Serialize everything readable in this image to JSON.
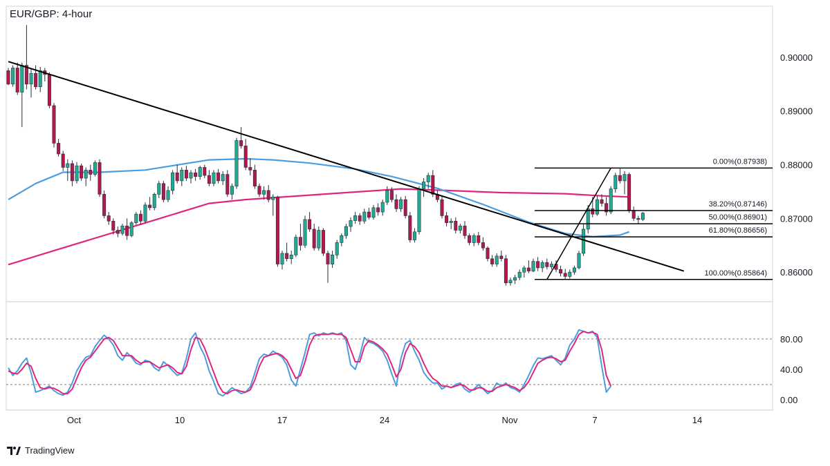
{
  "title": "EUR/GBP: 4-hour",
  "brand": "TradingView",
  "colors": {
    "up": "#22ab94",
    "down": "#b2184f",
    "ma_fast": "#4a9de0",
    "ma_slow": "#e0267a",
    "stoch_k": "#4a9de0",
    "stoch_d": "#e0267a",
    "trendline": "#000000",
    "fib": "#000000"
  },
  "chart_data": {
    "type": "candlestick",
    "price_axis": {
      "ticks": [
        0.9,
        0.89,
        0.88,
        0.87,
        0.86
      ],
      "labels": [
        "0.90000",
        "0.89000",
        "0.88000",
        "0.87000",
        "0.86000"
      ],
      "range": [
        0.8545,
        0.9095
      ]
    },
    "x_axis": {
      "labels": [
        "Oct",
        "10",
        "17",
        "24",
        "Nov",
        "7",
        "14"
      ]
    },
    "ohlc": [
      [
        0.8975,
        0.898,
        0.8948,
        0.895
      ],
      [
        0.895,
        0.8985,
        0.8945,
        0.898
      ],
      [
        0.898,
        0.899,
        0.893,
        0.8935
      ],
      [
        0.8935,
        0.899,
        0.887,
        0.8985
      ],
      [
        0.8985,
        0.906,
        0.894,
        0.895
      ],
      [
        0.895,
        0.8978,
        0.8925,
        0.897
      ],
      [
        0.897,
        0.8985,
        0.894,
        0.8945
      ],
      [
        0.8945,
        0.8982,
        0.8935,
        0.8975
      ],
      [
        0.8975,
        0.898,
        0.8955,
        0.8968
      ],
      [
        0.8968,
        0.8972,
        0.8905,
        0.891
      ],
      [
        0.891,
        0.8915,
        0.8832,
        0.884
      ],
      [
        0.884,
        0.8848,
        0.8815,
        0.882
      ],
      [
        0.882,
        0.8826,
        0.8788,
        0.8795
      ],
      [
        0.8795,
        0.881,
        0.877,
        0.8802
      ],
      [
        0.8802,
        0.8808,
        0.876,
        0.877
      ],
      [
        0.877,
        0.8805,
        0.8765,
        0.8798
      ],
      [
        0.8798,
        0.8802,
        0.877,
        0.8775
      ],
      [
        0.8775,
        0.8795,
        0.876,
        0.879
      ],
      [
        0.879,
        0.88,
        0.877,
        0.8782
      ],
      [
        0.8782,
        0.8808,
        0.8778,
        0.8804
      ],
      [
        0.8804,
        0.881,
        0.874,
        0.8745
      ],
      [
        0.8745,
        0.8752,
        0.87,
        0.8705
      ],
      [
        0.8705,
        0.8712,
        0.8688,
        0.8695
      ],
      [
        0.8695,
        0.87,
        0.867,
        0.8678
      ],
      [
        0.8678,
        0.8685,
        0.8665,
        0.8672
      ],
      [
        0.8672,
        0.869,
        0.8668,
        0.8686
      ],
      [
        0.8686,
        0.87,
        0.866,
        0.8668
      ],
      [
        0.8668,
        0.8695,
        0.8665,
        0.8692
      ],
      [
        0.8692,
        0.8712,
        0.8688,
        0.8708
      ],
      [
        0.8708,
        0.8715,
        0.8688,
        0.8695
      ],
      [
        0.8695,
        0.873,
        0.869,
        0.8725
      ],
      [
        0.8725,
        0.874,
        0.8715,
        0.872
      ],
      [
        0.872,
        0.8748,
        0.8715,
        0.8745
      ],
      [
        0.8745,
        0.877,
        0.8738,
        0.8765
      ],
      [
        0.8765,
        0.877,
        0.873,
        0.8735
      ],
      [
        0.8735,
        0.876,
        0.873,
        0.8752
      ],
      [
        0.8752,
        0.879,
        0.8745,
        0.8785
      ],
      [
        0.8785,
        0.88,
        0.8765,
        0.877
      ],
      [
        0.877,
        0.8795,
        0.876,
        0.879
      ],
      [
        0.879,
        0.8798,
        0.877,
        0.8775
      ],
      [
        0.8775,
        0.879,
        0.8765,
        0.8785
      ],
      [
        0.8785,
        0.8792,
        0.877,
        0.8778
      ],
      [
        0.8778,
        0.8798,
        0.8772,
        0.8795
      ],
      [
        0.8795,
        0.88,
        0.8775,
        0.878
      ],
      [
        0.878,
        0.879,
        0.876,
        0.8765
      ],
      [
        0.8765,
        0.879,
        0.876,
        0.8785
      ],
      [
        0.8785,
        0.8792,
        0.8765,
        0.877
      ],
      [
        0.877,
        0.8788,
        0.8762,
        0.8782
      ],
      [
        0.8782,
        0.879,
        0.874,
        0.8745
      ],
      [
        0.8745,
        0.8765,
        0.8735,
        0.876
      ],
      [
        0.876,
        0.885,
        0.8755,
        0.8845
      ],
      [
        0.8845,
        0.887,
        0.883,
        0.8835
      ],
      [
        0.8835,
        0.8848,
        0.879,
        0.8795
      ],
      [
        0.8795,
        0.8812,
        0.878,
        0.879
      ],
      [
        0.879,
        0.88,
        0.8755,
        0.876
      ],
      [
        0.876,
        0.8765,
        0.874,
        0.8745
      ],
      [
        0.8745,
        0.876,
        0.8735,
        0.8752
      ],
      [
        0.8752,
        0.8762,
        0.873,
        0.8735
      ],
      [
        0.8735,
        0.8745,
        0.8705,
        0.874
      ],
      [
        0.874,
        0.8742,
        0.861,
        0.8615
      ],
      [
        0.8615,
        0.864,
        0.8605,
        0.8635
      ],
      [
        0.8635,
        0.8655,
        0.862,
        0.8625
      ],
      [
        0.8625,
        0.864,
        0.8615,
        0.8632
      ],
      [
        0.8632,
        0.867,
        0.8628,
        0.8665
      ],
      [
        0.8665,
        0.869,
        0.864,
        0.865
      ],
      [
        0.865,
        0.8705,
        0.8645,
        0.8698
      ],
      [
        0.8698,
        0.8712,
        0.8675,
        0.868
      ],
      [
        0.868,
        0.869,
        0.864,
        0.8645
      ],
      [
        0.8645,
        0.8685,
        0.864,
        0.8678
      ],
      [
        0.8678,
        0.8682,
        0.863,
        0.8635
      ],
      [
        0.8635,
        0.864,
        0.858,
        0.8615
      ],
      [
        0.8615,
        0.864,
        0.8608,
        0.8632
      ],
      [
        0.8632,
        0.866,
        0.8625,
        0.8655
      ],
      [
        0.8655,
        0.8672,
        0.8648,
        0.8668
      ],
      [
        0.8668,
        0.869,
        0.8662,
        0.8685
      ],
      [
        0.8685,
        0.8702,
        0.8675,
        0.8696
      ],
      [
        0.8696,
        0.8712,
        0.869,
        0.8705
      ],
      [
        0.8705,
        0.871,
        0.8688,
        0.8695
      ],
      [
        0.8695,
        0.8718,
        0.869,
        0.8712
      ],
      [
        0.8712,
        0.872,
        0.8698,
        0.8702
      ],
      [
        0.8702,
        0.8725,
        0.8698,
        0.872
      ],
      [
        0.872,
        0.8728,
        0.8705,
        0.8712
      ],
      [
        0.8712,
        0.8735,
        0.8705,
        0.873
      ],
      [
        0.873,
        0.876,
        0.8725,
        0.8752
      ],
      [
        0.8752,
        0.8758,
        0.873,
        0.8735
      ],
      [
        0.8735,
        0.8745,
        0.8712,
        0.8718
      ],
      [
        0.8718,
        0.874,
        0.8712,
        0.8735
      ],
      [
        0.8735,
        0.8742,
        0.87,
        0.8705
      ],
      [
        0.8705,
        0.8712,
        0.8655,
        0.866
      ],
      [
        0.866,
        0.8682,
        0.8655,
        0.8675
      ],
      [
        0.8675,
        0.876,
        0.867,
        0.8755
      ],
      [
        0.8755,
        0.8775,
        0.874,
        0.8768
      ],
      [
        0.8768,
        0.8785,
        0.8755,
        0.878
      ],
      [
        0.878,
        0.879,
        0.874,
        0.8745
      ],
      [
        0.8745,
        0.8752,
        0.873,
        0.8735
      ],
      [
        0.8735,
        0.8742,
        0.87,
        0.8705
      ],
      [
        0.8705,
        0.8712,
        0.8685,
        0.8692
      ],
      [
        0.8692,
        0.87,
        0.868,
        0.8695
      ],
      [
        0.8695,
        0.8702,
        0.8672,
        0.8678
      ],
      [
        0.8678,
        0.869,
        0.8672,
        0.8686
      ],
      [
        0.8686,
        0.8695,
        0.8662,
        0.8668
      ],
      [
        0.8668,
        0.8672,
        0.865,
        0.8655
      ],
      [
        0.8655,
        0.8672,
        0.8648,
        0.8668
      ],
      [
        0.8668,
        0.8675,
        0.865,
        0.8655
      ],
      [
        0.8655,
        0.8665,
        0.864,
        0.8645
      ],
      [
        0.8645,
        0.8648,
        0.862,
        0.8625
      ],
      [
        0.8625,
        0.8632,
        0.861,
        0.8615
      ],
      [
        0.8615,
        0.8635,
        0.861,
        0.863
      ],
      [
        0.863,
        0.864,
        0.862,
        0.8625
      ],
      [
        0.8625,
        0.8632,
        0.8575,
        0.858
      ],
      [
        0.858,
        0.859,
        0.8575,
        0.8585
      ],
      [
        0.8585,
        0.8595,
        0.8578,
        0.859
      ],
      [
        0.859,
        0.8605,
        0.8585,
        0.86
      ],
      [
        0.86,
        0.8612,
        0.859,
        0.8608
      ],
      [
        0.8608,
        0.8622,
        0.8598,
        0.8602
      ],
      [
        0.8602,
        0.8625,
        0.86,
        0.862
      ],
      [
        0.862,
        0.8628,
        0.8602,
        0.8608
      ],
      [
        0.8608,
        0.8622,
        0.86,
        0.8618
      ],
      [
        0.8618,
        0.8625,
        0.8605,
        0.861
      ],
      [
        0.861,
        0.862,
        0.8605,
        0.8615
      ],
      [
        0.8615,
        0.8622,
        0.86,
        0.8605
      ],
      [
        0.8605,
        0.8612,
        0.8592,
        0.8598
      ],
      [
        0.8598,
        0.8606,
        0.8586,
        0.8592
      ],
      [
        0.8592,
        0.8605,
        0.8588,
        0.86
      ],
      [
        0.86,
        0.8612,
        0.8595,
        0.8608
      ],
      [
        0.8608,
        0.864,
        0.8605,
        0.8635
      ],
      [
        0.8635,
        0.869,
        0.863,
        0.868
      ],
      [
        0.868,
        0.8725,
        0.8672,
        0.8718
      ],
      [
        0.8718,
        0.874,
        0.8702,
        0.8708
      ],
      [
        0.8708,
        0.8742,
        0.8705,
        0.8735
      ],
      [
        0.8735,
        0.8745,
        0.8722,
        0.8728
      ],
      [
        0.8728,
        0.874,
        0.8705,
        0.8712
      ],
      [
        0.8712,
        0.876,
        0.8708,
        0.8755
      ],
      [
        0.8755,
        0.8785,
        0.8748,
        0.878
      ],
      [
        0.878,
        0.8794,
        0.8765,
        0.877
      ],
      [
        0.877,
        0.8788,
        0.8745,
        0.8782
      ],
      [
        0.8782,
        0.8785,
        0.871,
        0.8715
      ],
      [
        0.8715,
        0.8722,
        0.8695,
        0.87
      ],
      [
        0.87,
        0.8705,
        0.869,
        0.8698
      ],
      [
        0.8698,
        0.8712,
        0.8695,
        0.871
      ]
    ],
    "ma_blue": [
      [
        0,
        0.8735
      ],
      [
        6,
        0.8765
      ],
      [
        12,
        0.8786
      ],
      [
        20,
        0.8786
      ],
      [
        30,
        0.879
      ],
      [
        44,
        0.8809
      ],
      [
        52,
        0.8811
      ],
      [
        58,
        0.8809
      ],
      [
        66,
        0.8803
      ],
      [
        76,
        0.8792
      ],
      [
        84,
        0.8778
      ],
      [
        94,
        0.8756
      ],
      [
        104,
        0.8726
      ],
      [
        114,
        0.8693
      ],
      [
        122,
        0.8672
      ],
      [
        128,
        0.8666
      ],
      [
        134,
        0.8669
      ],
      [
        136,
        0.8675
      ]
    ],
    "ma_red": [
      [
        0,
        0.8614
      ],
      [
        10,
        0.864
      ],
      [
        22,
        0.8671
      ],
      [
        34,
        0.8702
      ],
      [
        44,
        0.8728
      ],
      [
        52,
        0.8735
      ],
      [
        62,
        0.8741
      ],
      [
        74,
        0.8748
      ],
      [
        86,
        0.8755
      ],
      [
        96,
        0.8752
      ],
      [
        108,
        0.8748
      ],
      [
        122,
        0.8746
      ],
      [
        130,
        0.8742
      ],
      [
        136,
        0.874
      ]
    ],
    "trendline": {
      "from": [
        0.8992,
        0
      ],
      "to": [
        0.8602,
        148
      ]
    },
    "fib_swing": {
      "from": [
        0.85864,
        118
      ],
      "to": [
        0.87938,
        132
      ]
    },
    "fibonacci": [
      {
        "ratio": "0.00%",
        "price": 0.87938,
        "label": "0.00%(0.87938)"
      },
      {
        "ratio": "38.20%",
        "price": 0.87146,
        "label": "38.20%(0.87146)"
      },
      {
        "ratio": "50.00%",
        "price": 0.86901,
        "label": "50.00%(0.86901)"
      },
      {
        "ratio": "61.80%",
        "price": 0.86656,
        "label": "61.80%(0.86656)"
      },
      {
        "ratio": "100.00%",
        "price": 0.85864,
        "label": "100.00%(0.85864)"
      }
    ],
    "stochastic": {
      "range": [
        0,
        100
      ],
      "ticks": [
        80,
        40,
        0
      ],
      "labels": [
        "80.00",
        "40.00",
        "0.00"
      ],
      "levels": [
        80,
        20
      ],
      "k": [
        42,
        32,
        38,
        48,
        55,
        35,
        10,
        12,
        15,
        18,
        12,
        8,
        6,
        10,
        22,
        38,
        48,
        56,
        58,
        70,
        78,
        85,
        80,
        72,
        58,
        52,
        62,
        56,
        48,
        46,
        52,
        50,
        42,
        38,
        50,
        45,
        38,
        32,
        35,
        54,
        80,
        88,
        70,
        58,
        38,
        24,
        8,
        5,
        10,
        16,
        12,
        8,
        10,
        17,
        35,
        54,
        60,
        58,
        64,
        60,
        56,
        46,
        26,
        18,
        40,
        62,
        86,
        88,
        84,
        88,
        86,
        88,
        86,
        88,
        78,
        46,
        40,
        58,
        82,
        76,
        74,
        70,
        64,
        52,
        34,
        18,
        54,
        74,
        78,
        64,
        52,
        36,
        28,
        22,
        22,
        14,
        18,
        16,
        20,
        22,
        14,
        10,
        14,
        20,
        14,
        8,
        12,
        22,
        18,
        22,
        16,
        14,
        10,
        20,
        32,
        45,
        55,
        54,
        56,
        58,
        52,
        46,
        55,
        72,
        80,
        92,
        90,
        88,
        90,
        82,
        44,
        10,
        18
      ],
      "d": [
        38,
        35,
        34,
        40,
        48,
        44,
        28,
        16,
        14,
        16,
        15,
        12,
        8,
        8,
        14,
        28,
        42,
        52,
        56,
        64,
        72,
        80,
        82,
        78,
        68,
        58,
        58,
        58,
        52,
        48,
        50,
        50,
        46,
        42,
        44,
        46,
        42,
        36,
        34,
        44,
        66,
        82,
        80,
        68,
        52,
        36,
        20,
        10,
        8,
        12,
        13,
        11,
        10,
        13,
        26,
        44,
        56,
        58,
        60,
        61,
        58,
        52,
        40,
        28,
        32,
        50,
        72,
        84,
        86,
        86,
        86,
        87,
        86,
        86,
        82,
        66,
        50,
        50,
        70,
        78,
        76,
        72,
        67,
        60,
        46,
        30,
        40,
        62,
        74,
        70,
        62,
        48,
        36,
        28,
        24,
        18,
        18,
        16,
        18,
        20,
        18,
        13,
        13,
        16,
        15,
        11,
        11,
        16,
        18,
        20,
        18,
        16,
        12,
        16,
        24,
        36,
        48,
        52,
        55,
        56,
        54,
        50,
        52,
        64,
        74,
        86,
        90,
        88,
        89,
        86,
        66,
        32,
        18
      ]
    }
  }
}
